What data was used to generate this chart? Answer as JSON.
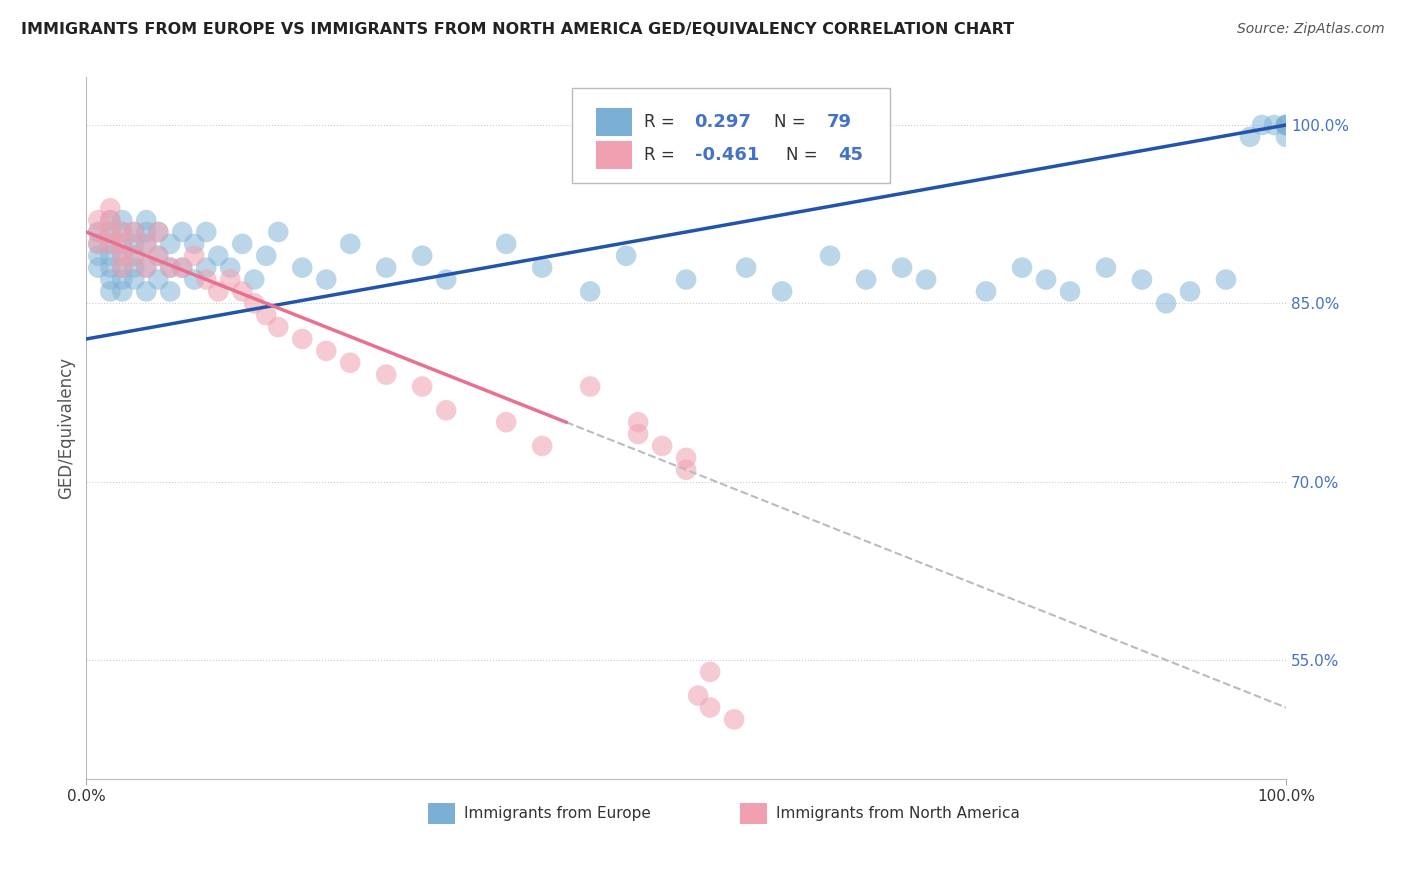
{
  "title": "IMMIGRANTS FROM EUROPE VS IMMIGRANTS FROM NORTH AMERICA GED/EQUIVALENCY CORRELATION CHART",
  "source": "Source: ZipAtlas.com",
  "ylabel": "GED/Equivalency",
  "right_yticks": [
    55.0,
    70.0,
    85.0,
    100.0
  ],
  "right_ytick_labels": [
    "55.0%",
    "70.0%",
    "85.0%",
    "100.0%"
  ],
  "europe_color": "#7bafd4",
  "north_america_color": "#f0a0b0",
  "europe_line_color": "#2255aa",
  "north_america_line_color": "#e87090",
  "background_color": "#ffffff",
  "grid_color": "#cccccc",
  "xlim": [
    0,
    100
  ],
  "ylim": [
    45,
    104
  ],
  "figsize": [
    14.06,
    8.92
  ],
  "dpi": 100,
  "europe_x": [
    1,
    1,
    1,
    1,
    2,
    2,
    2,
    2,
    2,
    2,
    2,
    3,
    3,
    3,
    3,
    3,
    3,
    3,
    4,
    4,
    4,
    4,
    4,
    5,
    5,
    5,
    5,
    5,
    6,
    6,
    6,
    7,
    7,
    7,
    8,
    8,
    9,
    9,
    10,
    10,
    11,
    12,
    13,
    14,
    15,
    16,
    18,
    20,
    22,
    25,
    28,
    30,
    35,
    38,
    42,
    45,
    50,
    55,
    58,
    62,
    65,
    68,
    70,
    75,
    78,
    80,
    82,
    85,
    88,
    90,
    92,
    95,
    97,
    98,
    99,
    100,
    100,
    100,
    100
  ],
  "europe_y": [
    91,
    90,
    89,
    88,
    92,
    91,
    90,
    89,
    88,
    87,
    86,
    92,
    91,
    90,
    89,
    88,
    87,
    86,
    91,
    90,
    89,
    88,
    87,
    92,
    91,
    90,
    88,
    86,
    91,
    89,
    87,
    90,
    88,
    86,
    91,
    88,
    90,
    87,
    91,
    88,
    89,
    88,
    90,
    87,
    89,
    91,
    88,
    87,
    90,
    88,
    89,
    87,
    90,
    88,
    86,
    89,
    87,
    88,
    86,
    89,
    87,
    88,
    87,
    86,
    88,
    87,
    86,
    88,
    87,
    85,
    86,
    87,
    99,
    100,
    100,
    100,
    99,
    100,
    100
  ],
  "north_america_x": [
    1,
    1,
    1,
    2,
    2,
    2,
    2,
    3,
    3,
    3,
    3,
    4,
    4,
    5,
    5,
    6,
    6,
    7,
    8,
    9,
    10,
    11,
    12,
    13,
    14,
    15,
    16,
    18,
    20,
    22,
    25,
    28,
    30,
    35,
    38,
    42,
    46,
    46,
    48,
    50,
    50,
    51,
    52,
    52,
    54
  ],
  "north_america_y": [
    92,
    91,
    90,
    93,
    92,
    91,
    90,
    91,
    90,
    89,
    88,
    91,
    89,
    90,
    88,
    91,
    89,
    88,
    88,
    89,
    87,
    86,
    87,
    86,
    85,
    84,
    83,
    82,
    81,
    80,
    79,
    78,
    76,
    75,
    73,
    78,
    75,
    74,
    73,
    72,
    71,
    52,
    54,
    51,
    50
  ],
  "eu_line_x0": 0,
  "eu_line_y0": 82,
  "eu_line_x1": 100,
  "eu_line_y1": 100,
  "na_line_x0": 0,
  "na_line_y0": 91,
  "na_line_x1": 40,
  "na_line_y1": 75,
  "na_dash_x0": 40,
  "na_dash_y0": 75,
  "na_dash_x1": 100,
  "na_dash_y1": 51
}
